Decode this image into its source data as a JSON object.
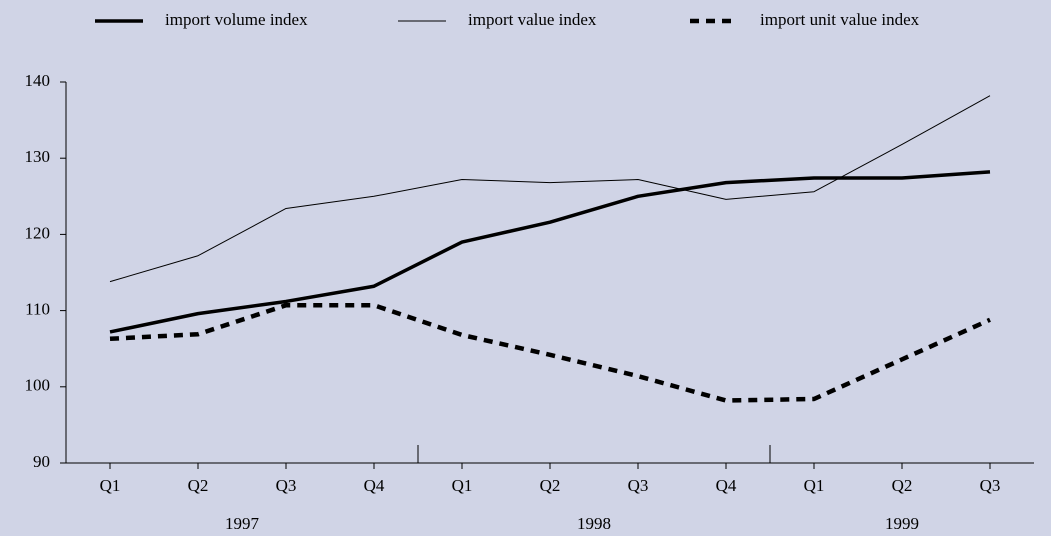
{
  "chart_data": {
    "type": "line",
    "categories": [
      "Q1",
      "Q2",
      "Q3",
      "Q4",
      "Q1",
      "Q2",
      "Q3",
      "Q4",
      "Q1",
      "Q2",
      "Q3"
    ],
    "groups": [
      {
        "name": "1997",
        "count": 4
      },
      {
        "name": "1998",
        "count": 4
      },
      {
        "name": "1999",
        "count": 3
      }
    ],
    "series": [
      {
        "name": "import volume index",
        "color": "#000000",
        "style": "thick",
        "values": [
          107.2,
          109.6,
          111.2,
          113.2,
          119.0,
          121.6,
          125.0,
          126.8,
          127.4,
          127.4,
          128.2
        ]
      },
      {
        "name": "import value index",
        "color": "#000000",
        "style": "thin",
        "values": [
          113.8,
          117.2,
          123.4,
          125.0,
          127.2,
          126.8,
          127.2,
          124.6,
          125.6,
          131.8,
          138.2
        ]
      },
      {
        "name": "import unit value index",
        "color": "#000000",
        "style": "dashed",
        "values": [
          106.3,
          106.9,
          110.7,
          110.7,
          106.8,
          104.2,
          101.4,
          98.2,
          98.4,
          103.6,
          108.8
        ]
      }
    ],
    "ylim": [
      90,
      140
    ],
    "yticks": [
      90,
      100,
      110,
      120,
      130,
      140
    ],
    "legend": "top",
    "grid": false
  }
}
